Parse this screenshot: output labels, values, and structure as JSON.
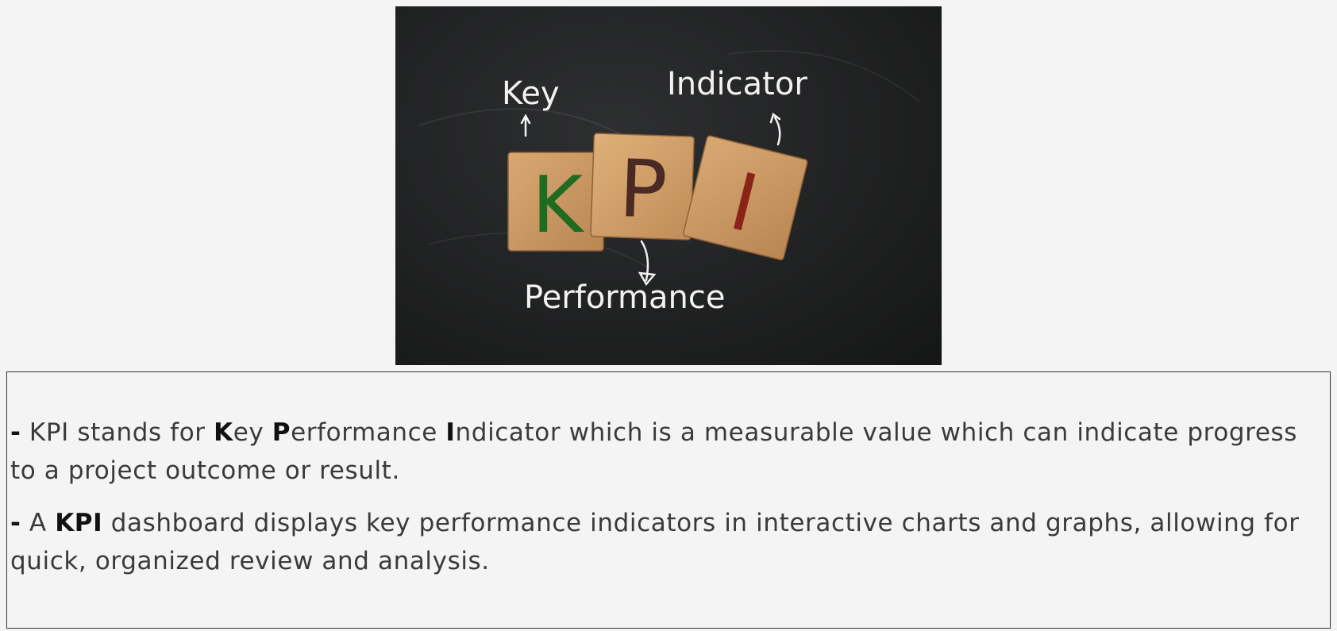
{
  "image": {
    "label_key": "Key",
    "label_indicator": "Indicator",
    "label_performance": "Performance",
    "block_letters": [
      "K",
      "P",
      "I"
    ],
    "block_letter_colors": [
      "#1f6b1f",
      "#4a2a22",
      "#8a2418"
    ]
  },
  "description": {
    "para1": {
      "dash": "-",
      "t1": " KPI stands for ",
      "k": "K",
      "t2": "ey ",
      "p": "P",
      "t3": "erformance ",
      "i": "I",
      "t4": "ndicator which is a measurable value which can indicate progress to a project outcome or result."
    },
    "para2": {
      "dash": "-",
      "t1": " A ",
      "kpi": "KPI",
      "t2": " dashboard displays key performance indicators in interactive charts and graphs, allowing for quick, organized review and analysis."
    }
  }
}
